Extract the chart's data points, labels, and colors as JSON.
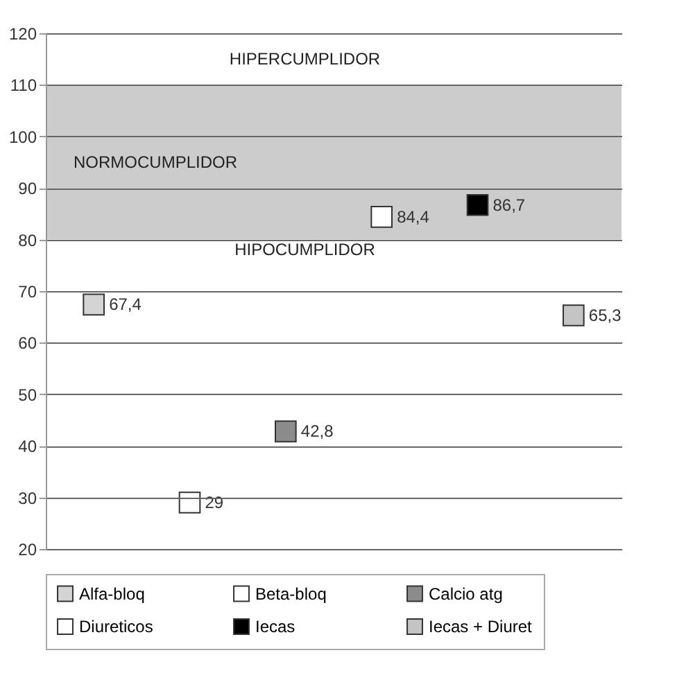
{
  "chart_data": {
    "type": "scatter",
    "categories": [
      null,
      null,
      null,
      null,
      null,
      null
    ],
    "series": [
      {
        "name": "Alfa-bloq",
        "color": "#d4d4d4",
        "values": [
          67.4,
          null,
          null,
          null,
          null,
          null
        ],
        "value_labels": [
          "67,4",
          null,
          null,
          null,
          null,
          null
        ]
      },
      {
        "name": "Beta-bloq",
        "color": "#ffffff",
        "values": [
          null,
          29,
          null,
          null,
          null,
          null
        ],
        "value_labels": [
          null,
          "29",
          null,
          null,
          null,
          null
        ]
      },
      {
        "name": "Calcio atg",
        "color": "#8c8c8c",
        "values": [
          null,
          null,
          42.8,
          null,
          null,
          null
        ],
        "value_labels": [
          null,
          null,
          "42,8",
          null,
          null,
          null
        ]
      },
      {
        "name": "Diureticos",
        "color": "#ffffff",
        "values": [
          null,
          null,
          null,
          84.4,
          null,
          null
        ],
        "value_labels": [
          null,
          null,
          null,
          "84,4",
          null,
          null
        ]
      },
      {
        "name": "Iecas",
        "color": "#000000",
        "values": [
          null,
          null,
          null,
          null,
          86.7,
          null
        ],
        "value_labels": [
          null,
          null,
          null,
          null,
          "86,7",
          null
        ]
      },
      {
        "name": "Iecas + Diuret",
        "color": "#c4c4c4",
        "values": [
          null,
          null,
          null,
          null,
          null,
          65.3
        ],
        "value_labels": [
          null,
          null,
          null,
          null,
          null,
          "65,3"
        ]
      }
    ],
    "ylim": [
      20,
      120
    ],
    "yticks": [
      20,
      30,
      40,
      50,
      60,
      70,
      80,
      90,
      100,
      110,
      120
    ],
    "bands": [
      {
        "axis": "y",
        "from": 80,
        "to": 110,
        "label": "NORMOCUMPLIDOR",
        "color": "#cccccc"
      }
    ],
    "annotations": [
      "HIPERCUMPLIDOR",
      "HIPOCUMPLIDOR"
    ],
    "marker": "square",
    "grid": "y",
    "legend": "bottom",
    "tick_labels": "y"
  }
}
